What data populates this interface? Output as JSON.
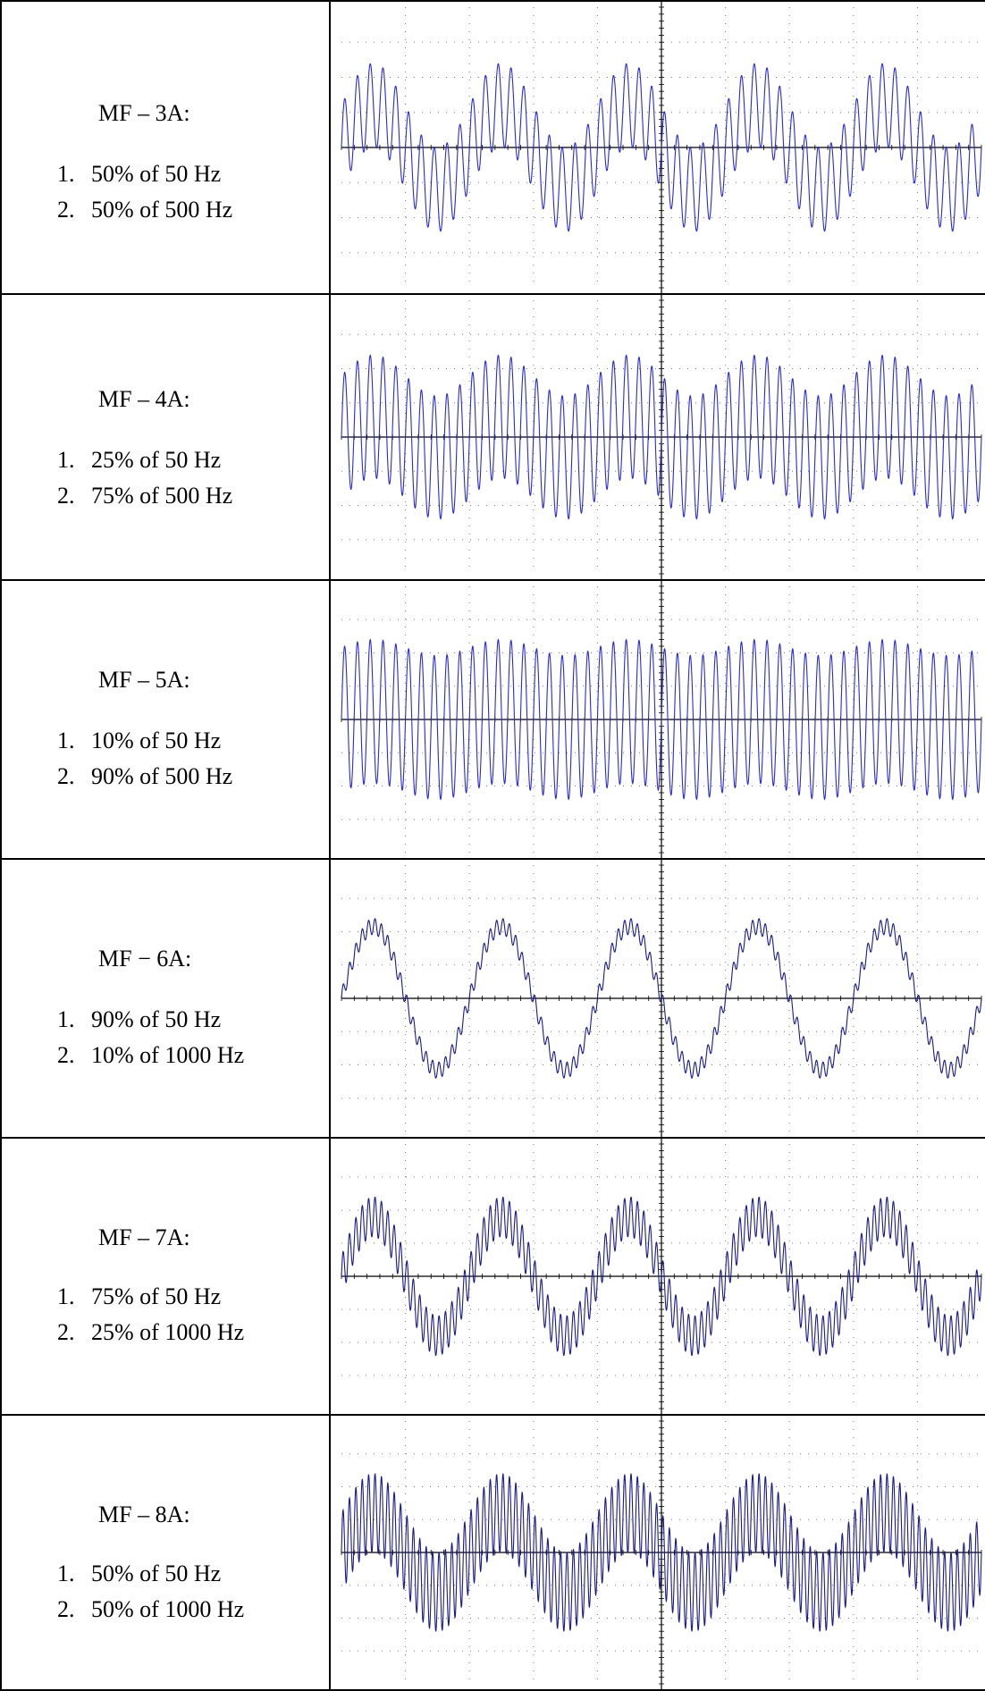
{
  "rows": [
    {
      "heading": "MF – 3A:",
      "items": [
        {
          "number": "1.",
          "text": "50% of 50 Hz"
        },
        {
          "number": "2.",
          "text": "50% of 500 Hz"
        }
      ],
      "components": [
        {
          "fraction": 0.5,
          "frequency_hz": 50
        },
        {
          "fraction": 0.5,
          "frequency_hz": 500
        }
      ]
    },
    {
      "heading": "MF – 4A:",
      "items": [
        {
          "number": "1.",
          "text": "25% of 50 Hz"
        },
        {
          "number": "2.",
          "text": "75% of 500 Hz"
        }
      ],
      "components": [
        {
          "fraction": 0.25,
          "frequency_hz": 50
        },
        {
          "fraction": 0.75,
          "frequency_hz": 500
        }
      ]
    },
    {
      "heading": "MF – 5A:",
      "items": [
        {
          "number": "1.",
          "text": "10% of 50 Hz"
        },
        {
          "number": "2.",
          "text": "90% of 500 Hz"
        }
      ],
      "components": [
        {
          "fraction": 0.1,
          "frequency_hz": 50
        },
        {
          "fraction": 0.9,
          "frequency_hz": 500
        }
      ]
    },
    {
      "heading": "MF − 6A:",
      "items": [
        {
          "number": "1.",
          "text": "90% of 50 Hz"
        },
        {
          "number": "2.",
          "text": "10% of 1000 Hz"
        }
      ],
      "components": [
        {
          "fraction": 0.9,
          "frequency_hz": 50
        },
        {
          "fraction": 0.1,
          "frequency_hz": 1000
        }
      ]
    },
    {
      "heading": "MF – 7A:",
      "items": [
        {
          "number": "1.",
          "text": "75% of 50 Hz"
        },
        {
          "number": "2.",
          "text": "25% of 1000 Hz"
        }
      ],
      "components": [
        {
          "fraction": 0.75,
          "frequency_hz": 50
        },
        {
          "fraction": 0.25,
          "frequency_hz": 1000
        }
      ]
    },
    {
      "heading": "MF – 8A:",
      "items": [
        {
          "number": "1.",
          "text": "50% of 50 Hz"
        },
        {
          "number": "2.",
          "text": "50% of 1000 Hz"
        }
      ],
      "components": [
        {
          "fraction": 0.5,
          "frequency_hz": 50
        },
        {
          "fraction": 0.5,
          "frequency_hz": 1000
        }
      ]
    }
  ],
  "chart_data": [
    {
      "type": "line",
      "title": "",
      "xlabel": "",
      "ylabel": "",
      "grid": true,
      "divisions_x": 10,
      "divisions_y": 8,
      "series": [
        {
          "fundamental_hz": 50,
          "fundamental_cycles": 5,
          "components": [
            {
              "amplitude": 0.5,
              "frequency_hz": 50
            },
            {
              "amplitude": 0.5,
              "frequency_hz": 500
            }
          ]
        }
      ]
    },
    {
      "type": "line",
      "title": "",
      "xlabel": "",
      "ylabel": "",
      "grid": true,
      "divisions_x": 10,
      "divisions_y": 8,
      "series": [
        {
          "fundamental_hz": 50,
          "fundamental_cycles": 5,
          "components": [
            {
              "amplitude": 0.25,
              "frequency_hz": 50
            },
            {
              "amplitude": 0.75,
              "frequency_hz": 500
            }
          ]
        }
      ]
    },
    {
      "type": "line",
      "title": "",
      "xlabel": "",
      "ylabel": "",
      "grid": true,
      "divisions_x": 10,
      "divisions_y": 8,
      "series": [
        {
          "fundamental_hz": 50,
          "fundamental_cycles": 5,
          "components": [
            {
              "amplitude": 0.1,
              "frequency_hz": 50
            },
            {
              "amplitude": 0.9,
              "frequency_hz": 500
            }
          ]
        }
      ]
    },
    {
      "type": "line",
      "title": "",
      "xlabel": "",
      "ylabel": "",
      "grid": true,
      "divisions_x": 10,
      "divisions_y": 8,
      "series": [
        {
          "fundamental_hz": 50,
          "fundamental_cycles": 5,
          "components": [
            {
              "amplitude": 0.9,
              "frequency_hz": 50
            },
            {
              "amplitude": 0.1,
              "frequency_hz": 1000
            }
          ]
        }
      ]
    },
    {
      "type": "line",
      "title": "",
      "xlabel": "",
      "ylabel": "",
      "grid": true,
      "divisions_x": 10,
      "divisions_y": 8,
      "series": [
        {
          "fundamental_hz": 50,
          "fundamental_cycles": 5,
          "components": [
            {
              "amplitude": 0.75,
              "frequency_hz": 50
            },
            {
              "amplitude": 0.25,
              "frequency_hz": 1000
            }
          ]
        }
      ]
    },
    {
      "type": "line",
      "title": "",
      "xlabel": "",
      "ylabel": "",
      "grid": true,
      "divisions_x": 10,
      "divisions_y": 8,
      "series": [
        {
          "fundamental_hz": 50,
          "fundamental_cycles": 5,
          "components": [
            {
              "amplitude": 0.5,
              "frequency_hz": 50
            },
            {
              "amplitude": 0.5,
              "frequency_hz": 1000
            }
          ]
        }
      ]
    }
  ],
  "colors": {
    "trace_500hz": "#2a2ad8",
    "trace_1000hz": "#1a1a8c",
    "grid_dots": "#7a7a7a",
    "axis": "#000000",
    "border": "#000000"
  }
}
